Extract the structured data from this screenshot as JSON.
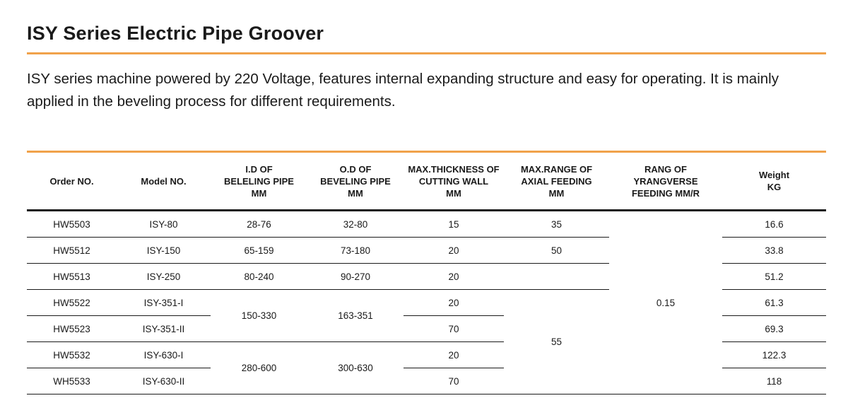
{
  "title": "ISY Series Electric Pipe Groover",
  "description": "ISY series machine powered by 220 Voltage, features internal expanding structure and easy for operating. It is mainly applied in the beveling process for different requirements.",
  "colors": {
    "accent": "#f0a24a",
    "text": "#1a1a1a"
  },
  "table": {
    "headers": [
      [
        "Order NO."
      ],
      [
        "Model NO."
      ],
      [
        "I.D OF",
        "BELELING PIPE",
        "MM"
      ],
      [
        "O.D OF",
        "BEVELING PIPE",
        "MM"
      ],
      [
        "MAX.THICKNESS OF",
        "CUTTING WALL",
        "MM"
      ],
      [
        "MAX.RANGE OF",
        "AXIAL FEEDING",
        "MM"
      ],
      [
        "RANG OF YRANGVERSE",
        "FEEDING MM/R"
      ],
      [
        "Weight",
        "KG"
      ]
    ],
    "rows": [
      {
        "order": "HW5503",
        "model": "ISY-80",
        "id": "28-76",
        "od": "32-80",
        "thickness": "15",
        "axial": "35",
        "weight": "16.6"
      },
      {
        "order": "HW5512",
        "model": "ISY-150",
        "id": "65-159",
        "od": "73-180",
        "thickness": "20",
        "axial": "50",
        "weight": "33.8"
      },
      {
        "order": "HW5513",
        "model": "ISY-250",
        "id": "80-240",
        "od": "90-270",
        "thickness": "20",
        "axial": "",
        "weight": "51.2"
      },
      {
        "order": "HW5522",
        "model": "ISY-351-I",
        "id": "150-330",
        "od": "163-351",
        "thickness": "20",
        "axial": "55",
        "weight": "61.3"
      },
      {
        "order": "HW5523",
        "model": "ISY-351-II",
        "id": "",
        "od": "",
        "thickness": "70",
        "axial": "",
        "weight": "69.3"
      },
      {
        "order": "HW5532",
        "model": "ISY-630-I",
        "id": "280-600",
        "od": "300-630",
        "thickness": "20",
        "axial": "",
        "weight": "122.3"
      },
      {
        "order": "WH5533",
        "model": "ISY-630-II",
        "id": "",
        "od": "",
        "thickness": "70",
        "axial": "",
        "weight": "118"
      }
    ],
    "transverse_feeding": "0.15"
  }
}
